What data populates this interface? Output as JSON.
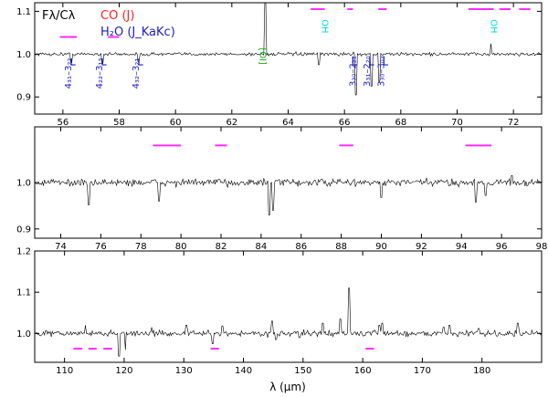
{
  "figure": {
    "legend_flux": "Fλ/Cλ",
    "legend_co": "CO (J)",
    "legend_h2o": "H₂O (J_KaKc)",
    "xlabel": "λ (μm)"
  },
  "colors": {
    "co": "#ff2020",
    "h2o": "#1c1ccc",
    "oh": "#00d8e0",
    "oi": "#10b010",
    "ch": "#ff9a20",
    "bar": "#ff2bff",
    "spectrum": "#000000"
  },
  "chart_data": [
    {
      "type": "line",
      "panel": 1,
      "xlim": [
        55,
        73
      ],
      "ylim": [
        0.86,
        1.12
      ],
      "xticks": [
        56,
        58,
        60,
        62,
        64,
        66,
        68,
        70,
        72
      ],
      "yticks": [
        0.9,
        1.0,
        1.1
      ],
      "ytick_labels": [
        "0.9",
        "1.0",
        "1.1"
      ],
      "noise": 0.004,
      "spikes": [
        {
          "x": 56.3,
          "y": 0.98
        },
        {
          "x": 57.4,
          "y": 0.978
        },
        {
          "x": 58.7,
          "y": 0.982
        },
        {
          "x": 63.18,
          "y": 1.12
        },
        {
          "x": 65.1,
          "y": 0.975
        },
        {
          "x": 66.4,
          "y": 0.905
        },
        {
          "x": 66.95,
          "y": 0.925
        },
        {
          "x": 67.25,
          "y": 0.935
        },
        {
          "x": 71.2,
          "y": 1.025
        }
      ],
      "bars": [
        {
          "x1": 55.9,
          "x2": 56.5,
          "y": 1.04
        },
        {
          "x1": 57.6,
          "x2": 58.0,
          "y": 1.04
        },
        {
          "x1": 64.8,
          "x2": 65.3,
          "y": 1.105
        },
        {
          "x1": 66.1,
          "x2": 66.3,
          "y": 1.105
        },
        {
          "x1": 67.2,
          "x2": 67.5,
          "y": 1.105
        },
        {
          "x1": 70.4,
          "x2": 71.3,
          "y": 1.105
        },
        {
          "x1": 71.5,
          "x2": 71.9,
          "y": 1.105
        },
        {
          "x1": 72.2,
          "x2": 72.6,
          "y": 1.105
        }
      ],
      "labels": [
        {
          "text": "4₃₁–3₂₂",
          "x": 56.3,
          "y": 0.955,
          "color": "h2o",
          "rot": -90
        },
        {
          "text": "4₂₂–3₁₃",
          "x": 57.4,
          "y": 0.955,
          "color": "h2o",
          "rot": -90
        },
        {
          "text": "4₃₂–3₂₁",
          "x": 58.7,
          "y": 0.955,
          "color": "h2o",
          "rot": -90
        },
        {
          "text": "[OI]",
          "x": 63.0,
          "y": 0.995,
          "color": "oi",
          "rot": 90
        },
        {
          "text": "OH",
          "x": 65.2,
          "y": 1.065,
          "color": "oh",
          "rot": 90
        },
        {
          "text": "3₃₀–2₂₁",
          "x": 66.4,
          "y": 0.96,
          "color": "h2o",
          "rot": -90
        },
        {
          "text": "3₃₁–2₂₀",
          "x": 66.9,
          "y": 0.96,
          "color": "h2o",
          "rot": -90
        },
        {
          "text": "3₃₀–3₀₃",
          "x": 67.4,
          "y": 0.96,
          "color": "h2o",
          "rot": -90
        },
        {
          "text": "OH",
          "x": 71.2,
          "y": 1.065,
          "color": "oh",
          "rot": 90
        }
      ],
      "ticks": [
        {
          "x": 56.3,
          "y1": 0.99,
          "y2": 0.975,
          "color": "h2o",
          "dx": 0.15
        },
        {
          "x": 57.4,
          "y1": 0.99,
          "y2": 0.975,
          "color": "h2o",
          "dx": 0.15
        },
        {
          "x": 58.7,
          "y1": 0.99,
          "y2": 0.975,
          "color": "h2o",
          "dx": 0.15
        },
        {
          "x": 66.3,
          "y1": 0.995,
          "y2": 0.975,
          "color": "h2o",
          "dx": 0.15
        },
        {
          "x": 66.9,
          "y1": 0.995,
          "y2": 0.975,
          "color": "h2o",
          "dx": 0.15
        },
        {
          "x": 67.4,
          "y1": 0.995,
          "y2": 0.975,
          "color": "h2o",
          "dx": 0.15
        }
      ]
    },
    {
      "type": "line",
      "panel": 2,
      "xlim": [
        72.7,
        98
      ],
      "ylim": [
        0.88,
        1.12
      ],
      "xticks": [
        74,
        76,
        78,
        80,
        82,
        84,
        86,
        88,
        90,
        92,
        94,
        96,
        98
      ],
      "yticks": [
        0.9,
        1.0
      ],
      "ytick_labels": [
        "0.9",
        "1.0"
      ],
      "noise": 0.008,
      "spikes": [
        {
          "x": 75.4,
          "y": 0.952
        },
        {
          "x": 78.9,
          "y": 0.96
        },
        {
          "x": 84.4,
          "y": 0.93
        },
        {
          "x": 84.6,
          "y": 0.94
        },
        {
          "x": 90.0,
          "y": 0.968
        },
        {
          "x": 94.7,
          "y": 0.958
        },
        {
          "x": 95.2,
          "y": 0.972
        },
        {
          "x": 96.5,
          "y": 1.015
        }
      ],
      "bars": [
        {
          "x1": 78.6,
          "x2": 80.0,
          "y": 1.08
        },
        {
          "x1": 81.7,
          "x2": 82.3,
          "y": 1.08
        },
        {
          "x1": 87.9,
          "x2": 88.6,
          "y": 1.08
        },
        {
          "x1": 94.2,
          "x2": 95.5,
          "y": 1.08
        }
      ]
    },
    {
      "type": "line",
      "panel": 3,
      "xlim": [
        105,
        190
      ],
      "ylim": [
        0.93,
        1.2
      ],
      "xticks": [
        110,
        120,
        130,
        140,
        150,
        160,
        170,
        180
      ],
      "yticks": [
        1.0,
        1.1,
        1.2
      ],
      "ytick_labels": [
        "1.0",
        "1.1",
        "1.2"
      ],
      "noise": 0.007,
      "spikes": [
        {
          "x": 113.5,
          "y": 1.02
        },
        {
          "x": 119.2,
          "y": 0.945
        },
        {
          "x": 120.2,
          "y": 0.96
        },
        {
          "x": 124.6,
          "y": 1.015
        },
        {
          "x": 130.4,
          "y": 1.02
        },
        {
          "x": 134.8,
          "y": 0.975
        },
        {
          "x": 136.5,
          "y": 1.018
        },
        {
          "x": 144.8,
          "y": 1.03
        },
        {
          "x": 145.5,
          "y": 0.985
        },
        {
          "x": 149.4,
          "y": 0.99
        },
        {
          "x": 153.3,
          "y": 1.025
        },
        {
          "x": 156.2,
          "y": 1.035
        },
        {
          "x": 157.7,
          "y": 1.11
        },
        {
          "x": 162.8,
          "y": 1.02
        },
        {
          "x": 163.3,
          "y": 1.025
        },
        {
          "x": 173.6,
          "y": 1.015
        },
        {
          "x": 174.6,
          "y": 1.02
        },
        {
          "x": 179.5,
          "y": 1.012
        },
        {
          "x": 186.0,
          "y": 1.025
        }
      ],
      "bars": [
        {
          "x1": 111.5,
          "x2": 113.0,
          "y": 0.963
        },
        {
          "x1": 114.0,
          "x2": 115.4,
          "y": 0.963
        },
        {
          "x1": 116.5,
          "x2": 118.0,
          "y": 0.963
        },
        {
          "x1": 134.5,
          "x2": 135.9,
          "y": 0.963
        },
        {
          "x1": 160.5,
          "x2": 161.9,
          "y": 0.963
        }
      ]
    }
  ]
}
